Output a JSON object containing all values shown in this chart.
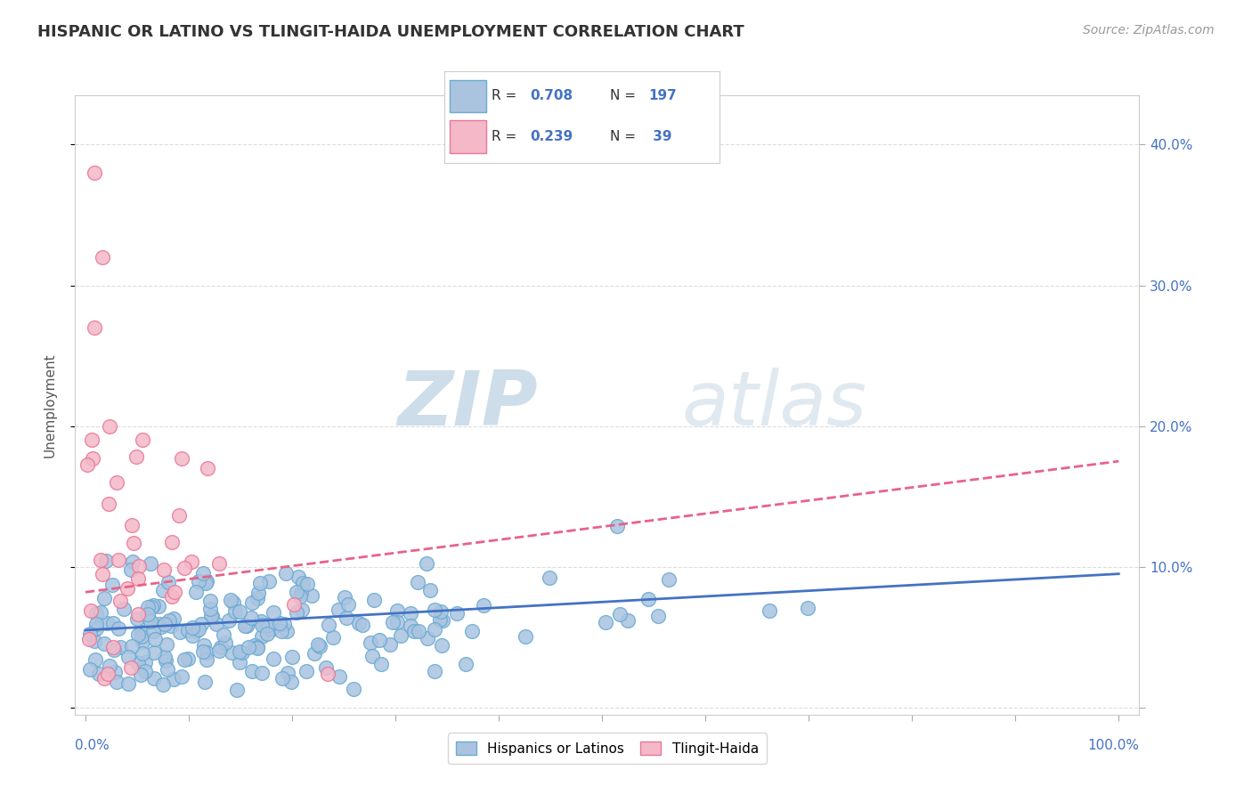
{
  "title": "HISPANIC OR LATINO VS TLINGIT-HAIDA UNEMPLOYMENT CORRELATION CHART",
  "source_text": "Source: ZipAtlas.com",
  "ylabel": "Unemployment",
  "blue_color": "#aac4e0",
  "blue_edge": "#6aaad4",
  "pink_color": "#f4b8c8",
  "pink_edge": "#e87898",
  "blue_line_color": "#4472c4",
  "pink_line_color": "#e8628a",
  "R_blue": 0.708,
  "N_blue": 197,
  "R_pink": 0.239,
  "N_pink": 39,
  "watermark_zip": "ZIP",
  "watermark_atlas": "atlas",
  "legend_label_blue": "Hispanics or Latinos",
  "legend_label_pink": "Tlingit-Haida",
  "background_color": "#ffffff",
  "grid_color": "#dddddd",
  "watermark_color": "#ccd9e8",
  "title_color": "#333333",
  "axis_label_color": "#4472c4",
  "source_color": "#999999"
}
